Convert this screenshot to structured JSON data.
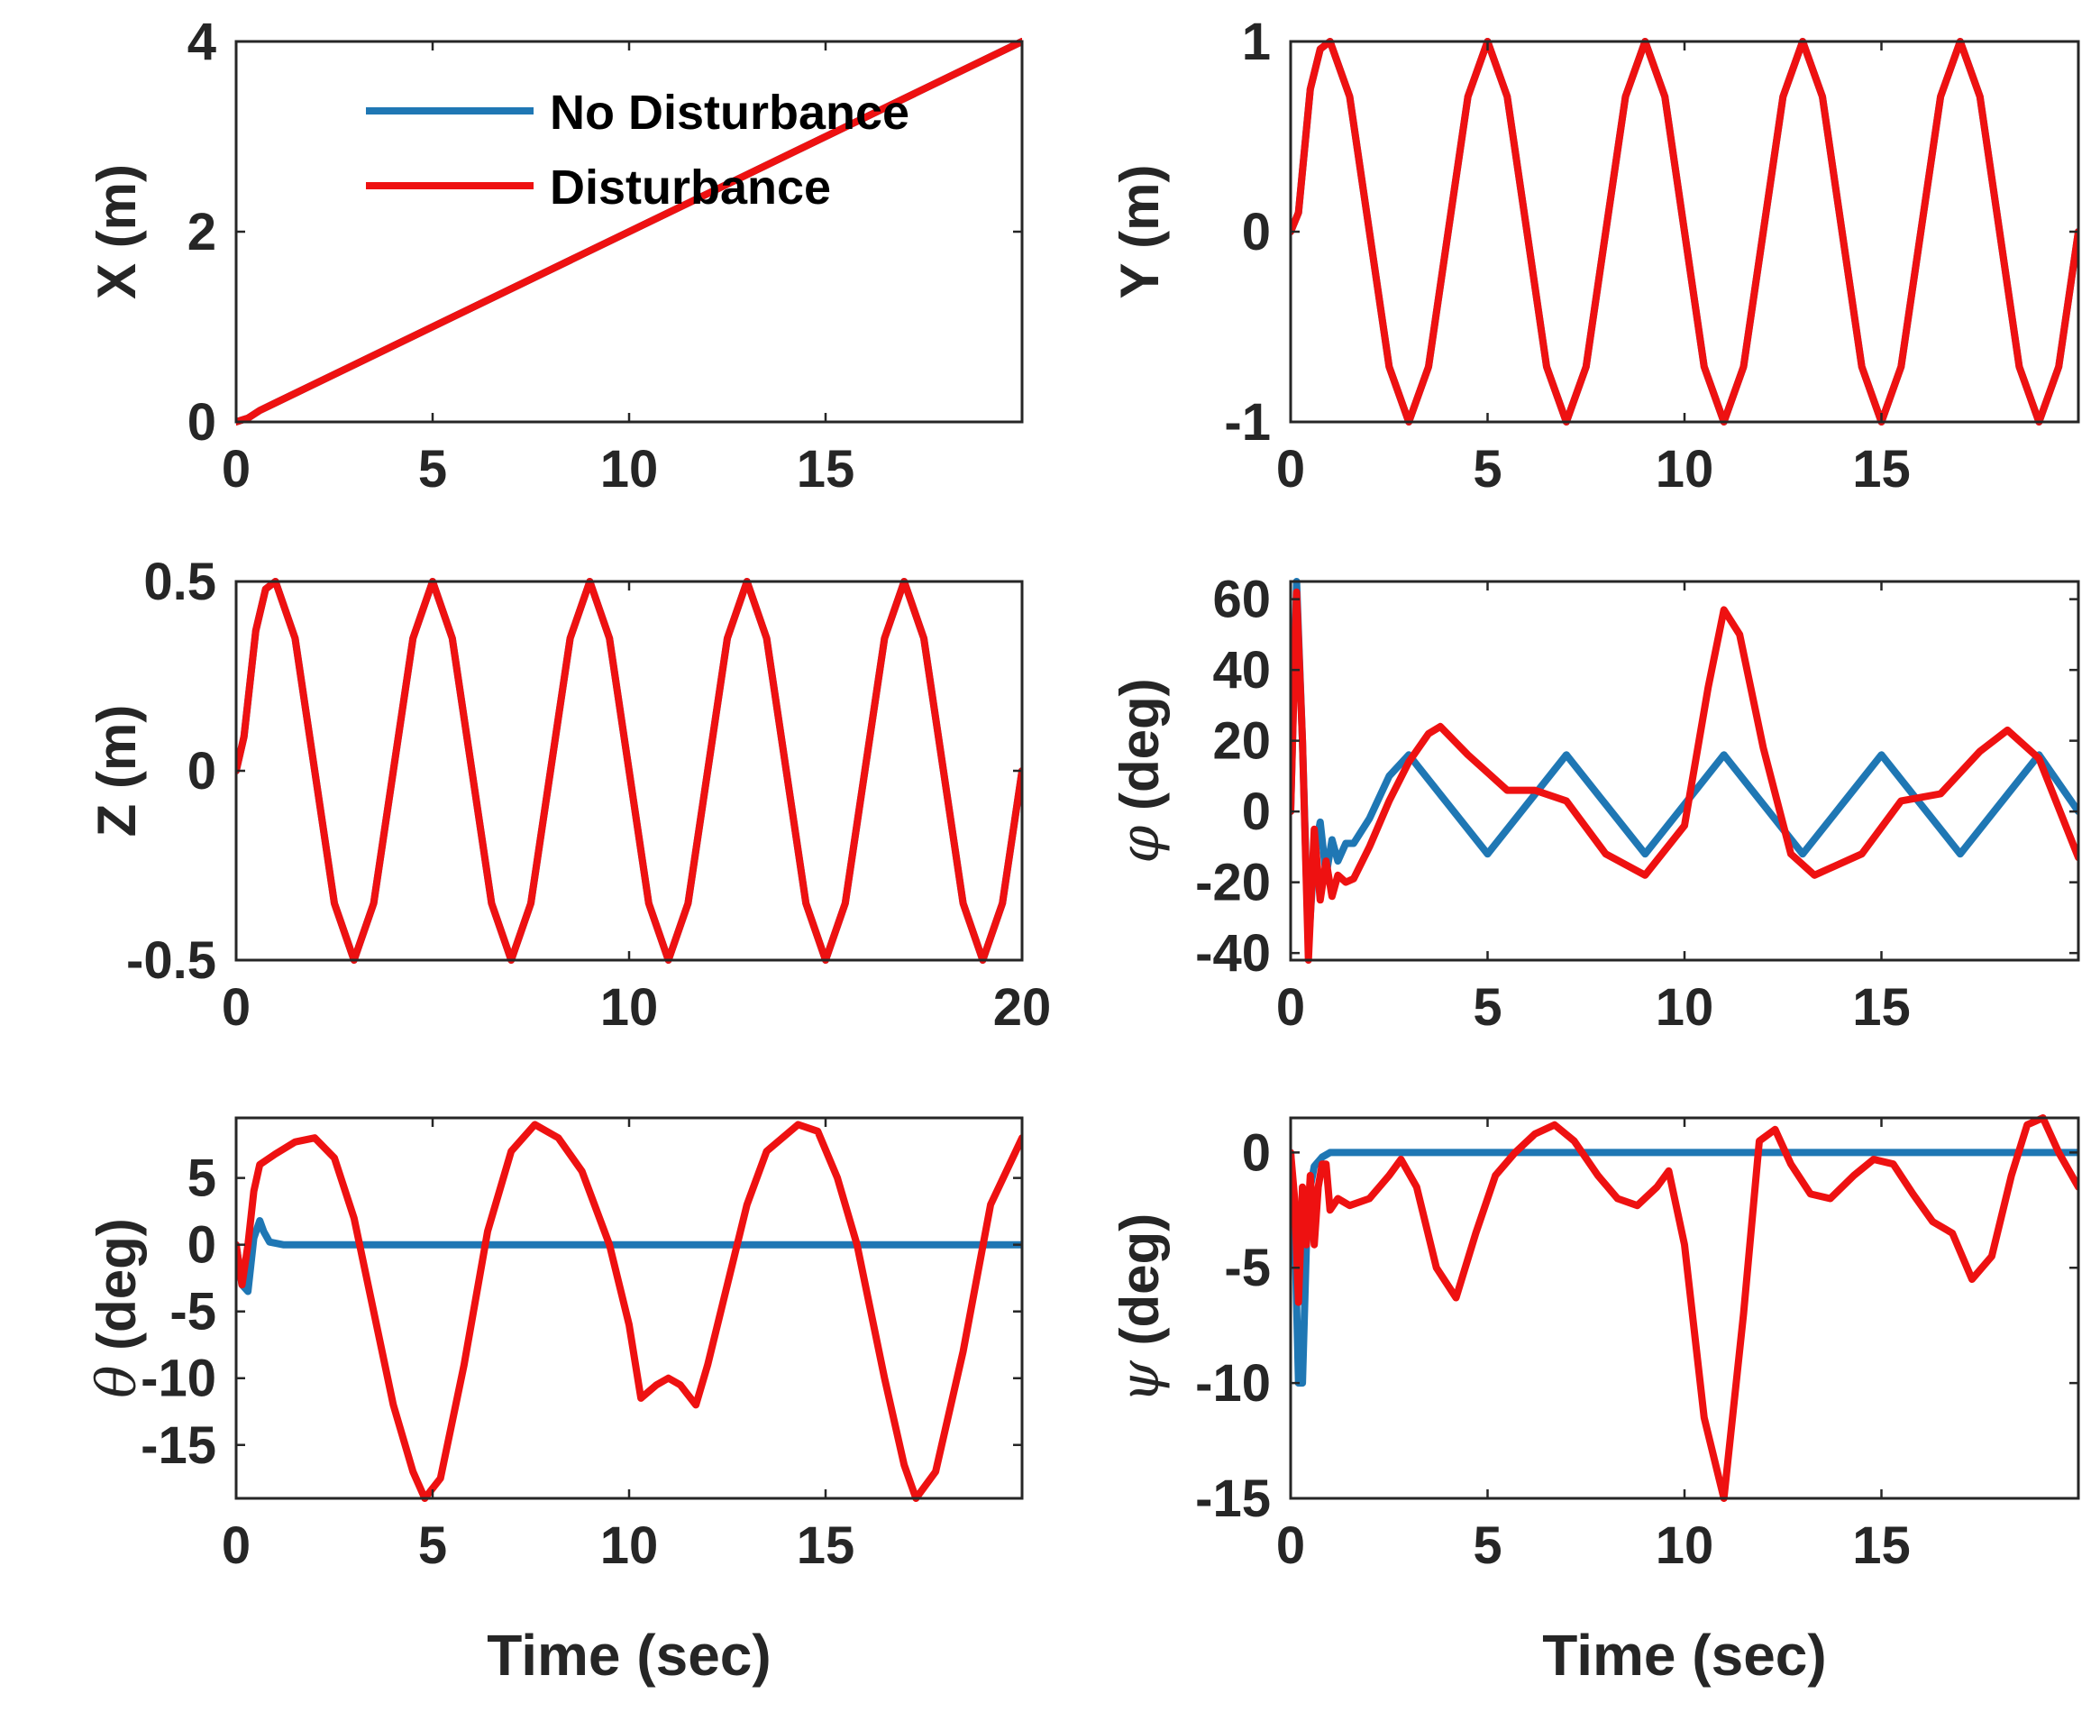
{
  "colors": {
    "no_disturbance": "#1f77b4",
    "disturbance": "#ee1111",
    "axis": "#262626"
  },
  "chart_data": [
    {
      "type": "line",
      "id": "X",
      "ylabel": "X (m)",
      "ylabel_symbol": "",
      "ylabel_rest": "X (m)",
      "xlabel": "",
      "xlim": [
        0,
        20
      ],
      "ylim": [
        0,
        4
      ],
      "xticks": [
        0,
        5,
        10,
        15
      ],
      "xtick_labels": [
        "0",
        "5",
        "10",
        "15"
      ],
      "yticks": [
        0,
        2,
        4
      ],
      "ytick_labels": [
        "0",
        "2",
        "4"
      ],
      "legend": {
        "placement": "top",
        "entries": [
          "No Disturbance",
          "Disturbance"
        ]
      },
      "series": [
        {
          "name": "No Disturbance",
          "x": [
            0,
            0.3,
            0.6,
            1,
            20
          ],
          "y": [
            0,
            0.04,
            0.12,
            0.2,
            4
          ]
        },
        {
          "name": "Disturbance",
          "x": [
            0,
            0.3,
            0.6,
            1,
            20
          ],
          "y": [
            0,
            0.04,
            0.12,
            0.2,
            4
          ]
        }
      ]
    },
    {
      "type": "line",
      "id": "Y",
      "ylabel": "Y (m)",
      "ylabel_symbol": "",
      "ylabel_rest": "Y (m)",
      "xlabel": "",
      "xlim": [
        0,
        20
      ],
      "ylim": [
        -1,
        1
      ],
      "xticks": [
        0,
        5,
        10,
        15
      ],
      "xtick_labels": [
        "0",
        "5",
        "10",
        "15"
      ],
      "yticks": [
        -1,
        0,
        1
      ],
      "ytick_labels": [
        "-1",
        "0",
        "1"
      ],
      "series": [
        {
          "name": "No Disturbance",
          "x": [
            0,
            0.2,
            0.5,
            0.75,
            1,
            1.5,
            2,
            2.5,
            3,
            3.5,
            4,
            4.5,
            5,
            5.5,
            6,
            6.5,
            7,
            7.5,
            8,
            8.5,
            9,
            9.5,
            10,
            10.5,
            11,
            11.5,
            12,
            12.5,
            13,
            13.5,
            14,
            14.5,
            15,
            15.5,
            16,
            16.5,
            17,
            17.5,
            18,
            18.5,
            19,
            19.5,
            20
          ],
          "y": [
            0,
            0.1,
            0.75,
            0.96,
            1,
            0.71,
            0,
            -0.71,
            -1,
            -0.71,
            0,
            0.71,
            1,
            0.71,
            0,
            -0.71,
            -1,
            -0.71,
            0,
            0.71,
            1,
            0.71,
            0,
            -0.71,
            -1,
            -0.71,
            0,
            0.71,
            1,
            0.71,
            0,
            -0.71,
            -1,
            -0.71,
            0,
            0.71,
            1,
            0.71,
            0,
            -0.71,
            -1,
            -0.71,
            0
          ]
        },
        {
          "name": "Disturbance",
          "x": [
            0,
            0.2,
            0.5,
            0.75,
            1,
            1.5,
            2,
            2.5,
            3,
            3.5,
            4,
            4.5,
            5,
            5.5,
            6,
            6.5,
            7,
            7.5,
            8,
            8.5,
            9,
            9.5,
            10,
            10.5,
            11,
            11.5,
            12,
            12.5,
            13,
            13.5,
            14,
            14.5,
            15,
            15.5,
            16,
            16.5,
            17,
            17.5,
            18,
            18.5,
            19,
            19.5,
            20
          ],
          "y": [
            0,
            0.1,
            0.75,
            0.96,
            1,
            0.71,
            0,
            -0.71,
            -1,
            -0.71,
            0,
            0.71,
            1,
            0.71,
            0,
            -0.71,
            -1,
            -0.71,
            0,
            0.71,
            1,
            0.71,
            0,
            -0.71,
            -1,
            -0.71,
            0,
            0.71,
            1,
            0.71,
            0,
            -0.71,
            -1,
            -0.71,
            0,
            0.71,
            1,
            0.71,
            0,
            -0.71,
            -1,
            -0.71,
            0
          ]
        }
      ]
    },
    {
      "type": "line",
      "id": "Z",
      "ylabel": "Z (m)",
      "ylabel_symbol": "",
      "ylabel_rest": "Z (m)",
      "xlabel": "",
      "xlim": [
        0,
        20
      ],
      "ylim": [
        -0.5,
        0.5
      ],
      "xticks": [
        0,
        10,
        20
      ],
      "xtick_labels": [
        "0",
        "10",
        "20"
      ],
      "yticks": [
        -0.5,
        0,
        0.5
      ],
      "ytick_labels": [
        "-0.5",
        "0",
        "0.5"
      ],
      "series": [
        {
          "name": "No Disturbance",
          "x": [
            0,
            0.2,
            0.5,
            0.75,
            1,
            1.5,
            2,
            2.5,
            3,
            3.5,
            4,
            4.5,
            5,
            5.5,
            6,
            6.5,
            7,
            7.5,
            8,
            8.5,
            9,
            9.5,
            10,
            10.5,
            11,
            11.5,
            12,
            12.5,
            13,
            13.5,
            14,
            14.5,
            15,
            15.5,
            16,
            16.5,
            17,
            17.5,
            18,
            18.5,
            19,
            19.5,
            20
          ],
          "y": [
            0,
            0.09,
            0.37,
            0.48,
            0.5,
            0.35,
            0,
            -0.35,
            -0.5,
            -0.35,
            0,
            0.35,
            0.5,
            0.35,
            0,
            -0.35,
            -0.5,
            -0.35,
            0,
            0.35,
            0.5,
            0.35,
            0,
            -0.35,
            -0.5,
            -0.35,
            0,
            0.35,
            0.5,
            0.35,
            0,
            -0.35,
            -0.5,
            -0.35,
            0,
            0.35,
            0.5,
            0.35,
            0,
            -0.35,
            -0.5,
            -0.35,
            0
          ]
        },
        {
          "name": "Disturbance",
          "x": [
            0,
            0.2,
            0.5,
            0.75,
            1,
            1.5,
            2,
            2.5,
            3,
            3.5,
            4,
            4.5,
            5,
            5.5,
            6,
            6.5,
            7,
            7.5,
            8,
            8.5,
            9,
            9.5,
            10,
            10.5,
            11,
            11.5,
            12,
            12.5,
            13,
            13.5,
            14,
            14.5,
            15,
            15.5,
            16,
            16.5,
            17,
            17.5,
            18,
            18.5,
            19,
            19.5,
            20
          ],
          "y": [
            0,
            0.09,
            0.37,
            0.48,
            0.5,
            0.35,
            0,
            -0.35,
            -0.5,
            -0.35,
            0,
            0.35,
            0.5,
            0.35,
            0,
            -0.35,
            -0.5,
            -0.35,
            0,
            0.35,
            0.5,
            0.35,
            0,
            -0.35,
            -0.5,
            -0.35,
            0,
            0.35,
            0.5,
            0.35,
            0,
            -0.35,
            -0.5,
            -0.35,
            0,
            0.35,
            0.5,
            0.35,
            0,
            -0.35,
            -0.5,
            -0.35,
            0
          ]
        }
      ]
    },
    {
      "type": "line",
      "id": "phi",
      "ylabel": "φ (deg)",
      "ylabel_symbol": "φ",
      "ylabel_rest": " (deg)",
      "xlabel": "",
      "xlim": [
        0,
        20
      ],
      "ylim": [
        -42,
        65
      ],
      "xticks": [
        0,
        5,
        10,
        15
      ],
      "xtick_labels": [
        "0",
        "5",
        "10",
        "15"
      ],
      "yticks": [
        -40,
        -20,
        0,
        20,
        40,
        60
      ],
      "ytick_labels": [
        "-40",
        "-20",
        "0",
        "20",
        "40",
        "60"
      ],
      "series": [
        {
          "name": "No Disturbance",
          "x": [
            0,
            0.15,
            0.3,
            0.45,
            0.6,
            0.75,
            0.9,
            1.05,
            1.2,
            1.4,
            1.6,
            2,
            2.5,
            3,
            4,
            5,
            6,
            7,
            8,
            9,
            10,
            11,
            12,
            13,
            14,
            15,
            16,
            17,
            18,
            19,
            20
          ],
          "y": [
            0,
            65,
            20,
            -38,
            -12,
            -3,
            -18,
            -8,
            -14,
            -9,
            -9,
            -2,
            10,
            16,
            2,
            -12,
            2,
            16,
            2,
            -12,
            2,
            16,
            2,
            -12,
            2,
            16,
            2,
            -12,
            2,
            16,
            0
          ]
        },
        {
          "name": "Disturbance",
          "x": [
            0,
            0.15,
            0.3,
            0.45,
            0.6,
            0.75,
            0.9,
            1.05,
            1.2,
            1.4,
            1.6,
            2,
            2.5,
            3,
            3.5,
            3.8,
            4.5,
            5.5,
            6.2,
            7,
            8,
            9,
            10,
            10.6,
            11,
            11.4,
            12,
            12.7,
            13.3,
            14.5,
            15.5,
            16.5,
            17.5,
            18.2,
            19,
            20
          ],
          "y": [
            0,
            62,
            20,
            -42,
            -5,
            -25,
            -14,
            -24,
            -18,
            -20,
            -19,
            -10,
            3,
            14,
            22,
            24,
            16,
            6,
            6,
            3,
            -12,
            -18,
            -4,
            35,
            57,
            50,
            18,
            -12,
            -18,
            -12,
            3,
            5,
            17,
            23,
            15,
            -13
          ]
        }
      ]
    },
    {
      "type": "line",
      "id": "theta",
      "ylabel": "θ (deg)",
      "ylabel_symbol": "θ",
      "ylabel_rest": " (deg)",
      "xlabel": "Time (sec)",
      "xlim": [
        0,
        20
      ],
      "ylim": [
        -19,
        9.5
      ],
      "xticks": [
        0,
        5,
        10,
        15
      ],
      "xtick_labels": [
        "0",
        "5",
        "10",
        "15"
      ],
      "yticks": [
        -15,
        -10,
        -5,
        0,
        5
      ],
      "ytick_labels": [
        "-15",
        "-10",
        "-5",
        "0",
        "5"
      ],
      "series": [
        {
          "name": "No Disturbance",
          "x": [
            0,
            0.15,
            0.3,
            0.45,
            0.6,
            0.7,
            0.85,
            1.2,
            20
          ],
          "y": [
            0,
            -3,
            -3.5,
            0.5,
            1.8,
            1,
            0.2,
            0,
            0
          ]
        },
        {
          "name": "Disturbance",
          "x": [
            0,
            0.15,
            0.3,
            0.45,
            0.6,
            1,
            1.5,
            2,
            2.5,
            3,
            3.5,
            4,
            4.5,
            4.8,
            5.2,
            5.8,
            6.4,
            7,
            7.6,
            8.2,
            8.8,
            9.5,
            10,
            10.3,
            10.7,
            11,
            11.3,
            11.7,
            12,
            12.5,
            13,
            13.5,
            14.3,
            14.8,
            15.3,
            15.8,
            16.5,
            17,
            17.3,
            17.8,
            18.5,
            19.2,
            20
          ],
          "y": [
            0,
            -3,
            0,
            4,
            6,
            6.8,
            7.7,
            8,
            6.5,
            2,
            -5,
            -12,
            -17,
            -19,
            -17.5,
            -9,
            1,
            7,
            9,
            8,
            5.5,
            0,
            -6,
            -11.5,
            -10.5,
            -10,
            -10.5,
            -12,
            -9,
            -3,
            3,
            7,
            9,
            8.5,
            5,
            0,
            -10,
            -16.5,
            -19,
            -17,
            -8,
            3,
            8
          ]
        }
      ]
    },
    {
      "type": "line",
      "id": "psi",
      "ylabel": "ψ (deg)",
      "ylabel_symbol": "ψ",
      "ylabel_rest": " (deg)",
      "xlabel": "Time (sec)",
      "xlim": [
        0,
        20
      ],
      "ylim": [
        -15,
        1.5
      ],
      "xticks": [
        0,
        5,
        10,
        15
      ],
      "xtick_labels": [
        "0",
        "5",
        "10",
        "15"
      ],
      "yticks": [
        -15,
        -10,
        -5,
        0
      ],
      "ytick_labels": [
        "-15",
        "-10",
        "-5",
        "0"
      ],
      "series": [
        {
          "name": "No Disturbance",
          "x": [
            0,
            0.1,
            0.2,
            0.3,
            0.4,
            0.5,
            0.6,
            0.8,
            1,
            20
          ],
          "y": [
            0,
            -3,
            -10,
            -10,
            -4,
            -1.5,
            -0.6,
            -0.2,
            0,
            0
          ]
        },
        {
          "name": "Disturbance",
          "x": [
            0,
            0.1,
            0.2,
            0.3,
            0.4,
            0.5,
            0.6,
            0.7,
            0.8,
            0.9,
            1,
            1.2,
            1.5,
            2,
            2.5,
            2.8,
            3.2,
            3.7,
            4.2,
            4.7,
            5.2,
            5.7,
            6.2,
            6.7,
            7.2,
            7.8,
            8.3,
            8.8,
            9.3,
            9.6,
            10,
            10.5,
            11,
            11.5,
            11.9,
            12.3,
            12.7,
            13.2,
            13.7,
            14.3,
            14.8,
            15.3,
            15.8,
            16.3,
            16.8,
            17.3,
            17.8,
            18.3,
            18.7,
            19.1,
            19.5,
            20
          ],
          "y": [
            0,
            -2,
            -6.5,
            -1.5,
            -4,
            -1,
            -4,
            -1.5,
            -0.5,
            -0.5,
            -2.5,
            -2,
            -2.3,
            -2,
            -1,
            -0.3,
            -1.5,
            -5,
            -6.3,
            -3.5,
            -1,
            0,
            0.8,
            1.2,
            0.5,
            -1,
            -2,
            -2.3,
            -1.5,
            -0.8,
            -4,
            -11.5,
            -15,
            -7,
            0.5,
            1,
            -0.5,
            -1.8,
            -2,
            -1,
            -0.3,
            -0.5,
            -1.8,
            -3,
            -3.5,
            -5.5,
            -4.5,
            -1,
            1.2,
            1.5,
            0,
            -1.5
          ]
        }
      ]
    }
  ]
}
